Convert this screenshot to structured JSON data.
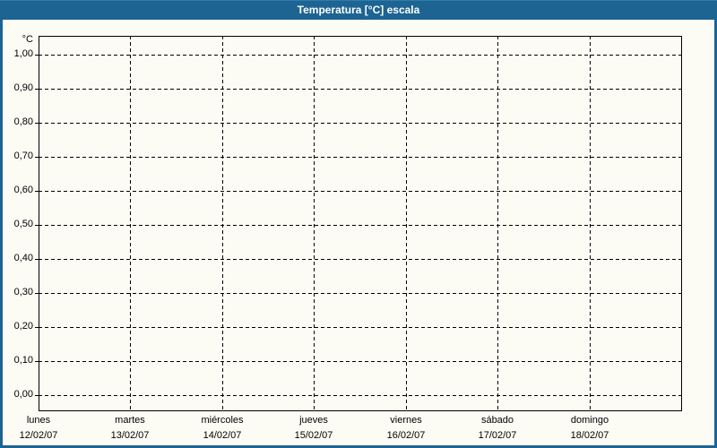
{
  "window": {
    "title": "Temperatura [°C] escala",
    "colors": {
      "titlebar_bg": "#1D6493",
      "titlebar_text": "#FFFFFF",
      "frame_border": "#1D6493",
      "panel_bg": "#FCFCF5",
      "grid": "#000000",
      "label_text": "#000000"
    }
  },
  "chart_data": {
    "type": "line",
    "title": "Temperatura [°C] escala",
    "xlabel": "",
    "ylabel": "°C",
    "ylim": [
      0.0,
      1.05
    ],
    "y_tick_values": [
      0.0,
      0.1,
      0.2,
      0.3,
      0.4,
      0.5,
      0.6,
      0.7,
      0.8,
      0.9,
      1.0
    ],
    "y_tick_labels": [
      "0,00",
      "0,10",
      "0,20",
      "0,30",
      "0,40",
      "0,50",
      "0,60",
      "0,70",
      "0,80",
      "0,90",
      "1,00"
    ],
    "x_categories": [
      {
        "day": "lunes",
        "date": "12/02/07"
      },
      {
        "day": "martes",
        "date": "13/02/07"
      },
      {
        "day": "miércoles",
        "date": "14/02/07"
      },
      {
        "day": "jueves",
        "date": "15/02/07"
      },
      {
        "day": "viernes",
        "date": "16/02/07"
      },
      {
        "day": "sábado",
        "date": "17/02/07"
      },
      {
        "day": "domingo",
        "date": "18/02/07"
      }
    ],
    "series": [],
    "grid": "dashed",
    "legend_position": "none"
  }
}
